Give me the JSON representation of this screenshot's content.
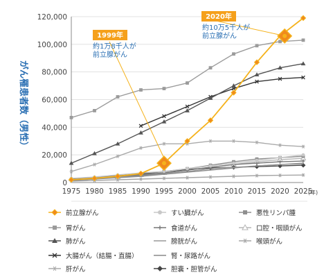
{
  "chart_data": {
    "type": "line",
    "ylabel": "がん罹患者数（男性）",
    "x": [
      1975,
      1980,
      1985,
      1990,
      1995,
      2000,
      2005,
      2010,
      2015,
      2020,
      2025
    ],
    "x_unit": "(年)",
    "ylim": [
      0,
      120000
    ],
    "yticks": [
      "0",
      "20,000",
      "40,000",
      "60,000",
      "80,000",
      "100,000",
      "120,000"
    ],
    "ytick_values": [
      0,
      20000,
      40000,
      60000,
      80000,
      100000,
      120000
    ],
    "grid": "horizontal",
    "series": [
      {
        "name": "前立腺がん",
        "color": "#f5b21b",
        "marker": "diamond-orange",
        "values": [
          2000,
          3000,
          4500,
          6500,
          14000,
          30000,
          45000,
          65000,
          87000,
          106000,
          119000
        ]
      },
      {
        "name": "胃がん",
        "color": "#9b9b9b",
        "marker": "square",
        "values": [
          47000,
          52000,
          62000,
          67000,
          68000,
          72000,
          83000,
          93000,
          99000,
          102000,
          103000
        ]
      },
      {
        "name": "肺がん",
        "color": "#555555",
        "marker": "triangle",
        "values": [
          14000,
          21000,
          28000,
          36000,
          44000,
          52000,
          61000,
          70000,
          78000,
          83000,
          86000
        ]
      },
      {
        "name": "大腸がん（結腸・直腸）",
        "color": "#333333",
        "marker": "x",
        "values": [
          null,
          null,
          null,
          41000,
          48000,
          55000,
          62000,
          68000,
          73000,
          75000,
          76000
        ]
      },
      {
        "name": "肝がん",
        "color": "#aaaaaa",
        "marker": "asterisk",
        "values": [
          8000,
          13000,
          19000,
          25000,
          28000,
          28000,
          30000,
          30000,
          29000,
          27000,
          26000
        ]
      },
      {
        "name": "すい臓がん",
        "color": "#c8c8c8",
        "marker": "circle",
        "values": [
          3000,
          4000,
          5500,
          7000,
          8000,
          10000,
          12000,
          14000,
          16000,
          18000,
          20000
        ]
      },
      {
        "name": "食道がん",
        "color": "#777777",
        "marker": "plus",
        "values": [
          3000,
          3500,
          4500,
          5500,
          7000,
          9000,
          11000,
          13000,
          14000,
          15000,
          15500
        ]
      },
      {
        "name": "膀胱がん",
        "color": "#999999",
        "marker": "none",
        "values": [
          2000,
          3000,
          4000,
          5000,
          6500,
          8000,
          10000,
          11000,
          12000,
          13000,
          13500
        ]
      },
      {
        "name": "腎・尿路がん",
        "color": "#888888",
        "marker": "none",
        "values": [
          1500,
          2500,
          3500,
          4500,
          6000,
          7500,
          9000,
          10500,
          12000,
          13000,
          14000
        ]
      },
      {
        "name": "胆嚢・胆管がん",
        "color": "#444444",
        "marker": "diamond",
        "values": [
          2500,
          3500,
          5000,
          6500,
          8000,
          9500,
          10500,
          11000,
          11500,
          12000,
          12500
        ]
      },
      {
        "name": "悪性リンパ腫",
        "color": "#8f8f8f",
        "marker": "square",
        "values": [
          2000,
          3000,
          4500,
          6000,
          8000,
          10000,
          12500,
          15000,
          17000,
          18000,
          19000
        ]
      },
      {
        "name": "口腔・咽頭がん",
        "color": "#b5b5b5",
        "marker": "triangle-open",
        "values": [
          2500,
          3000,
          4000,
          5500,
          7000,
          9000,
          11000,
          13000,
          15000,
          16500,
          17500
        ]
      },
      {
        "name": "喉頭がん",
        "color": "#a5a5a5",
        "marker": "asterisk",
        "values": [
          1000,
          1500,
          2000,
          2500,
          3000,
          3500,
          4000,
          4500,
          5000,
          5200,
          5400
        ]
      }
    ],
    "annotations": [
      {
        "title": "1999年",
        "text_line1": "約1万8千人が",
        "text_line2": "前立腺がん",
        "x": 1995,
        "y": 14000
      },
      {
        "title": "2020年",
        "text_line1": "約10万5千人が",
        "text_line2": "前立腺がん",
        "x": 2021,
        "y": 106000
      }
    ]
  }
}
